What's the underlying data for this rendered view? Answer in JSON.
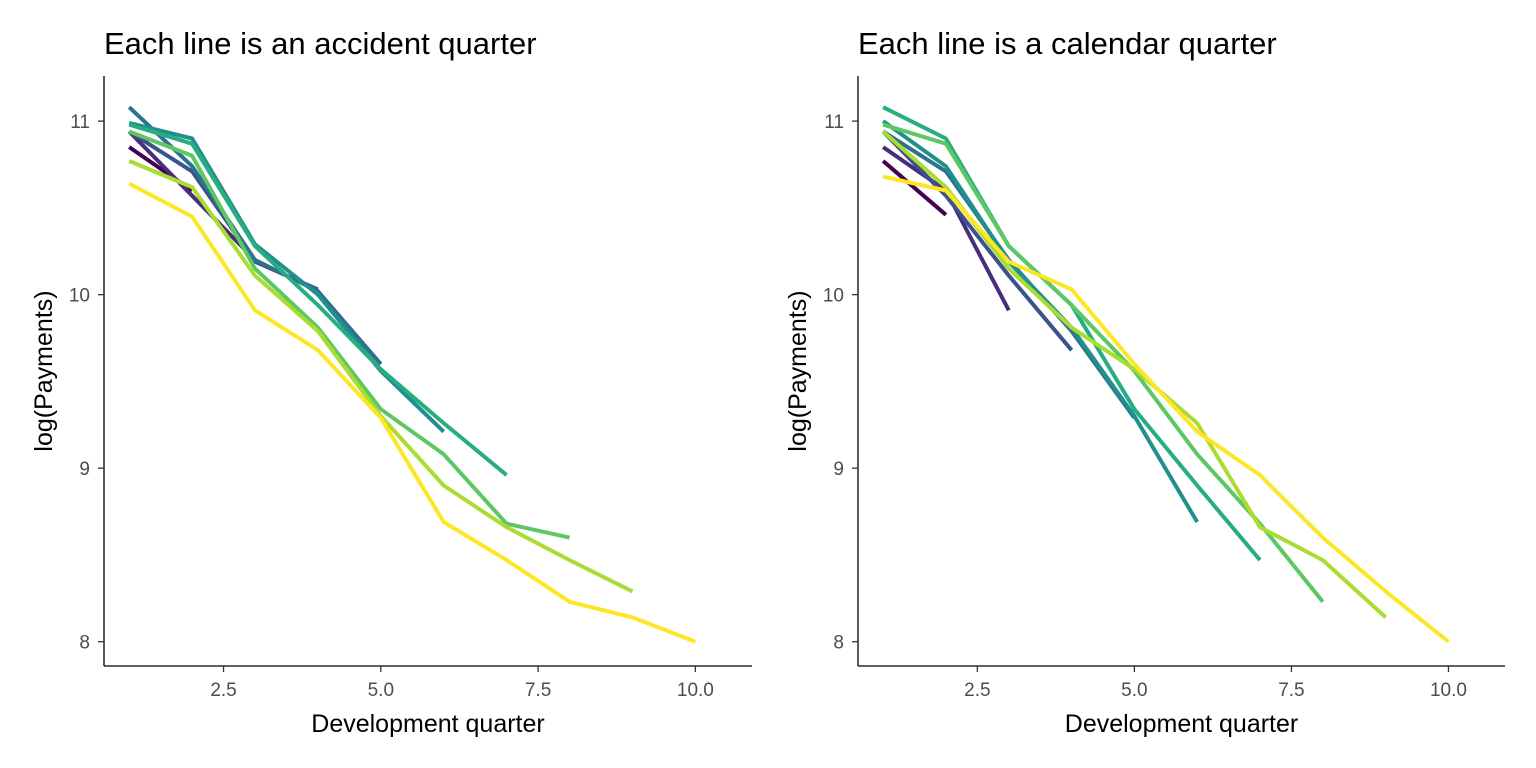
{
  "chart_data": [
    {
      "type": "line",
      "title": "Each line is an accident quarter",
      "xlabel": "Development quarter",
      "ylabel": "log(Payments)",
      "xlim": [
        0.6,
        10.9
      ],
      "ylim": [
        7.86,
        11.26
      ],
      "xticks": [
        2.5,
        5.0,
        7.5,
        10.0
      ],
      "xtick_labels": [
        "2.5",
        "5.0",
        "7.5",
        "10.0"
      ],
      "yticks": [
        8,
        9,
        10,
        11
      ],
      "ytick_labels": [
        "8",
        "9",
        "10",
        "11"
      ],
      "grid": false,
      "legend": "none",
      "series": [
        {
          "color": "#440154",
          "x": [
            1,
            2
          ],
          "y": [
            10.85,
            10.6
          ]
        },
        {
          "color": "#472D7B",
          "x": [
            1,
            2,
            3
          ],
          "y": [
            10.94,
            10.57,
            10.2
          ]
        },
        {
          "color": "#3B528B",
          "x": [
            1,
            2,
            3,
            4
          ],
          "y": [
            10.94,
            10.71,
            10.19,
            10.03
          ]
        },
        {
          "color": "#2C728E",
          "x": [
            1,
            2,
            3,
            4,
            5
          ],
          "y": [
            11.08,
            10.74,
            10.2,
            10.02,
            9.6
          ]
        },
        {
          "color": "#21908C",
          "x": [
            1,
            2,
            3,
            4,
            5,
            6
          ],
          "y": [
            10.99,
            10.9,
            10.29,
            10.0,
            9.56,
            9.21
          ]
        },
        {
          "color": "#27AD81",
          "x": [
            1,
            2,
            3,
            4,
            5,
            6,
            7
          ],
          "y": [
            10.98,
            10.87,
            10.28,
            9.94,
            9.57,
            9.26,
            8.96
          ]
        },
        {
          "color": "#5DC863",
          "x": [
            1,
            2,
            3,
            4,
            5,
            6,
            7,
            8
          ],
          "y": [
            10.94,
            10.8,
            10.15,
            9.81,
            9.34,
            9.08,
            8.68,
            8.6
          ]
        },
        {
          "color": "#AADC32",
          "x": [
            1,
            2,
            3,
            4,
            5,
            6,
            7,
            8,
            9
          ],
          "y": [
            10.77,
            10.62,
            10.11,
            9.79,
            9.3,
            8.9,
            8.66,
            8.47,
            8.29
          ]
        },
        {
          "color": "#FDE725",
          "x": [
            1,
            2,
            3,
            4,
            5,
            6,
            7,
            8,
            9,
            10
          ],
          "y": [
            10.64,
            10.45,
            9.91,
            9.68,
            9.29,
            8.69,
            8.47,
            8.23,
            8.14,
            8.0
          ]
        }
      ]
    },
    {
      "type": "line",
      "title": "Each line is a calendar quarter",
      "xlabel": "Development quarter",
      "ylabel": "log(Payments)",
      "xlim": [
        0.6,
        10.9
      ],
      "ylim": [
        7.86,
        11.26
      ],
      "xticks": [
        2.5,
        5.0,
        7.5,
        10.0
      ],
      "xtick_labels": [
        "2.5",
        "5.0",
        "7.5",
        "10.0"
      ],
      "yticks": [
        8,
        9,
        10,
        11
      ],
      "ytick_labels": [
        "8",
        "9",
        "10",
        "11"
      ],
      "grid": false,
      "legend": "none",
      "series": [
        {
          "color": "#440154",
          "x": [
            1,
            2
          ],
          "y": [
            10.77,
            10.46
          ]
        },
        {
          "color": "#472D7B",
          "x": [
            1,
            2,
            3
          ],
          "y": [
            10.85,
            10.6,
            9.91
          ]
        },
        {
          "color": "#3B528B",
          "x": [
            1,
            2,
            3,
            4
          ],
          "y": [
            10.94,
            10.57,
            10.11,
            9.68
          ]
        },
        {
          "color": "#2C728E",
          "x": [
            1,
            2,
            3,
            4,
            5
          ],
          "y": [
            10.94,
            10.71,
            10.2,
            9.79,
            9.29
          ]
        },
        {
          "color": "#21908C",
          "x": [
            1,
            2,
            3,
            4,
            5,
            6
          ],
          "y": [
            11.0,
            10.74,
            10.19,
            9.81,
            9.3,
            8.69
          ]
        },
        {
          "color": "#27AD81",
          "x": [
            1,
            2,
            3,
            4,
            5,
            6,
            7
          ],
          "y": [
            11.08,
            10.9,
            10.28,
            9.94,
            9.34,
            8.9,
            8.47
          ]
        },
        {
          "color": "#5DC863",
          "x": [
            1,
            2,
            3,
            4,
            5,
            6,
            7,
            8
          ],
          "y": [
            10.98,
            10.87,
            10.28,
            9.94,
            9.56,
            9.08,
            8.68,
            8.23
          ]
        },
        {
          "color": "#AADC32",
          "x": [
            1,
            2,
            3,
            4,
            5,
            6,
            7,
            8,
            9
          ],
          "y": [
            10.94,
            10.62,
            10.15,
            9.81,
            9.57,
            9.26,
            8.66,
            8.47,
            8.14
          ]
        },
        {
          "color": "#FDE725",
          "x": [
            1,
            2,
            3,
            4,
            5,
            6,
            7,
            8,
            9,
            10
          ],
          "y": [
            10.68,
            10.6,
            10.19,
            10.03,
            9.6,
            9.21,
            8.96,
            8.6,
            8.29,
            8.0
          ]
        }
      ]
    }
  ]
}
